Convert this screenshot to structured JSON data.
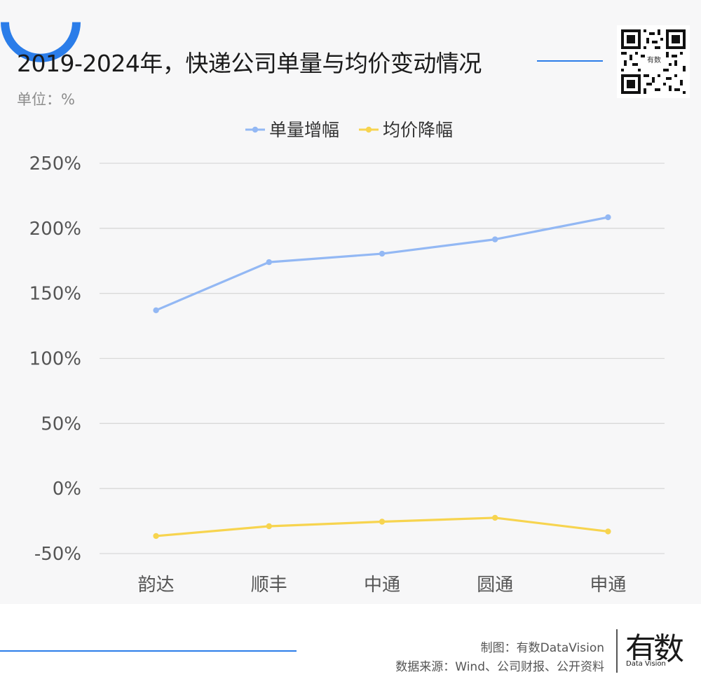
{
  "header": {
    "title": "2019-2024年，快递公司单量与均价变动情况",
    "unit": "单位：%"
  },
  "qr": {
    "label": "有数"
  },
  "colors": {
    "accent": "#2b7de9",
    "series_volume": "#93b8f4",
    "series_price": "#f7d44f"
  },
  "chart_data": {
    "type": "line",
    "categories": [
      "韵达",
      "顺丰",
      "中通",
      "圆通",
      "申通"
    ],
    "series": [
      {
        "name": "单量增幅",
        "values": [
          137,
          174,
          180.5,
          191.5,
          208.5
        ]
      },
      {
        "name": "均价降幅",
        "values": [
          -36.5,
          -29,
          -25.5,
          -22.5,
          -33
        ]
      }
    ],
    "yticks": [
      "250%",
      "200%",
      "150%",
      "100%",
      "50%",
      "0%",
      "-50%"
    ],
    "ylim": [
      -50,
      250
    ],
    "legend": "top-center",
    "grid": true
  },
  "footer": {
    "maker": "制图：有数DataVision",
    "source": "数据来源：Wind、公司财报、公开资料",
    "logo": "有数",
    "logo_sub": "Data Vision"
  }
}
